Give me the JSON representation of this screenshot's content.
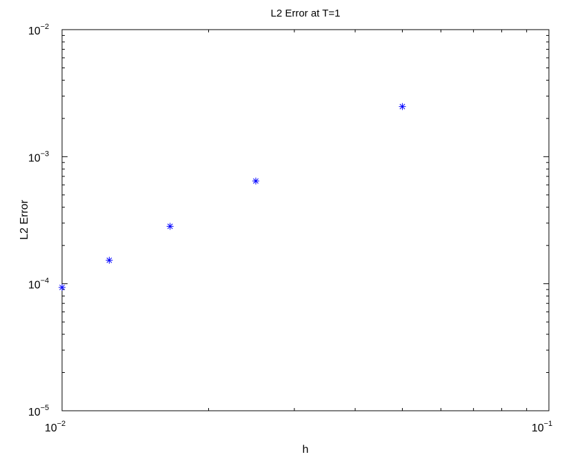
{
  "chart_data": {
    "type": "scatter",
    "title": "L2 Error at T=1",
    "xlabel": "h",
    "ylabel": "L2 Error",
    "xscale": "log",
    "yscale": "log",
    "xlim": [
      0.01,
      0.1
    ],
    "ylim": [
      1e-05,
      0.01
    ],
    "x_ticks": [
      {
        "value": 0.01,
        "base": "10",
        "exp": "−2"
      },
      {
        "value": 0.1,
        "base": "10",
        "exp": "−1"
      }
    ],
    "y_ticks": [
      {
        "value": 1e-05,
        "base": "10",
        "exp": "−5"
      },
      {
        "value": 0.0001,
        "base": "10",
        "exp": "−4"
      },
      {
        "value": 0.001,
        "base": "10",
        "exp": "−3"
      },
      {
        "value": 0.01,
        "base": "10",
        "exp": "−2"
      }
    ],
    "grid": false,
    "marker": "asterisk",
    "marker_color": "#0000ff",
    "series": [
      {
        "x": [
          0.01,
          0.0125,
          0.01667,
          0.025,
          0.05
        ],
        "y": [
          9.35e-05,
          0.000153,
          0.000283,
          0.000643,
          0.00248
        ]
      }
    ]
  }
}
